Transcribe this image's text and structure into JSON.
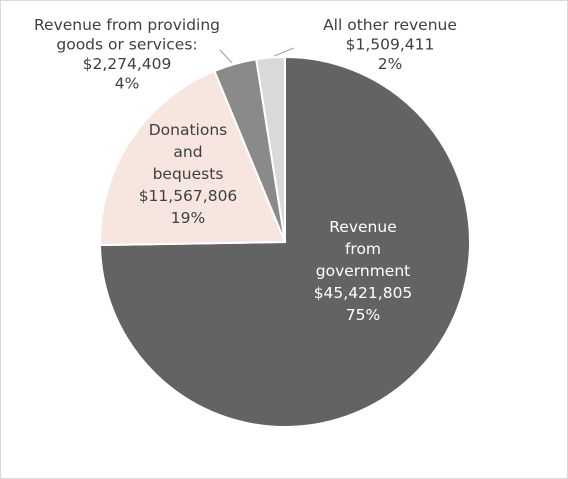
{
  "chart_data": {
    "type": "pie",
    "title": "",
    "slices": [
      {
        "name": "Revenue from government",
        "label_lines": [
          "Revenue",
          "from",
          "government"
        ],
        "value": 45421805,
        "value_text": "$45,421,805",
        "percent_text": "75%",
        "color": "#636363",
        "label_color": "#ffffff",
        "leader": false
      },
      {
        "name": "Donations and bequests",
        "label_lines": [
          "Donations",
          "and",
          "bequests"
        ],
        "value": 11567806,
        "value_text": "$11,567,806",
        "percent_text": "19%",
        "color": "#f6e6df",
        "label_color": "#404040",
        "leader": false
      },
      {
        "name": "Revenue from providing goods or services",
        "label_lines": [
          "Revenue from providing",
          "goods or services:"
        ],
        "value": 2274409,
        "value_text": "$2,274,409",
        "percent_text": "4%",
        "color": "#8a8a8a",
        "label_color": "#404040",
        "leader": true
      },
      {
        "name": "All other revenue",
        "label_lines": [
          "All other revenue"
        ],
        "value": 1509411,
        "value_text": "$1,509,411",
        "percent_text": "2%",
        "color": "#d9d9d9",
        "label_color": "#404040",
        "leader": true
      }
    ],
    "start_angle": "12 o'clock",
    "direction": "clockwise",
    "slice_border_color": "#ffffff",
    "leader_line_color": "#a6a6a6"
  }
}
